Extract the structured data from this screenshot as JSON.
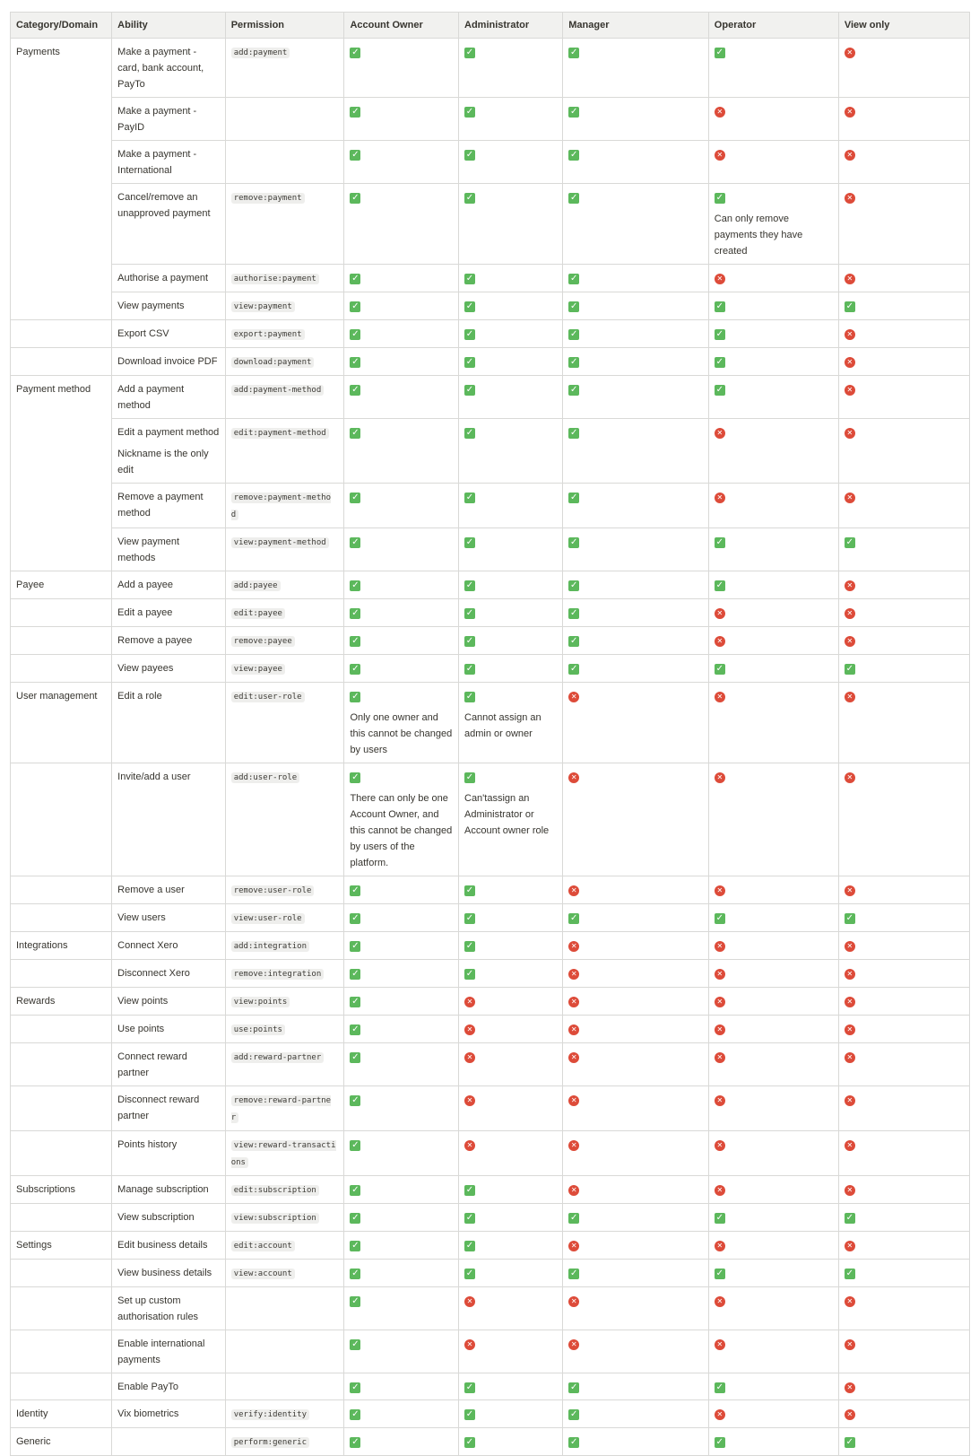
{
  "table": {
    "headers": [
      "Category/Domain",
      "Ability",
      "Permission",
      "Account Owner",
      "Administrator",
      "Manager",
      "Operator",
      "View only"
    ],
    "rows": [
      {
        "category": "Payments",
        "ability": "Make a payment - card, bank account, PayTo",
        "ability_note": "",
        "permission": "add:payment",
        "owner": "yes",
        "owner_note": "",
        "admin": "yes",
        "admin_note": "",
        "manager": "yes",
        "manager_note": "",
        "operator": "yes",
        "operator_note": "",
        "view": "no",
        "view_note": ""
      },
      {
        "category": "",
        "ability": "Make a payment - PayID",
        "ability_note": "",
        "permission": "",
        "owner": "yes",
        "owner_note": "",
        "admin": "yes",
        "admin_note": "",
        "manager": "yes",
        "manager_note": "",
        "operator": "no",
        "operator_note": "",
        "view": "no",
        "view_note": ""
      },
      {
        "category": "",
        "ability": "Make a payment - International",
        "ability_note": "",
        "permission": "",
        "owner": "yes",
        "owner_note": "",
        "admin": "yes",
        "admin_note": "",
        "manager": "yes",
        "manager_note": "",
        "operator": "no",
        "operator_note": "",
        "view": "no",
        "view_note": ""
      },
      {
        "category": "",
        "ability": "Cancel/remove an unapproved payment",
        "ability_note": "",
        "permission": "remove:payment",
        "owner": "yes",
        "owner_note": "",
        "admin": "yes",
        "admin_note": "",
        "manager": "yes",
        "manager_note": "",
        "operator": "yes",
        "operator_note": "Can only remove payments they have created",
        "view": "no",
        "view_note": ""
      },
      {
        "category": "",
        "ability": "Authorise a payment",
        "ability_note": "",
        "permission": "authorise:payment",
        "owner": "yes",
        "owner_note": "",
        "admin": "yes",
        "admin_note": "",
        "manager": "yes",
        "manager_note": "",
        "operator": "no",
        "operator_note": "",
        "view": "no",
        "view_note": ""
      },
      {
        "category": "",
        "ability": "View payments",
        "ability_note": "",
        "permission": "view:payment",
        "owner": "yes",
        "owner_note": "",
        "admin": "yes",
        "admin_note": "",
        "manager": "yes",
        "manager_note": "",
        "operator": "yes",
        "operator_note": "",
        "view": "yes",
        "view_note": ""
      },
      {
        "category": "",
        "ability": "Export CSV",
        "ability_note": "",
        "permission": "export:payment",
        "owner": "yes",
        "owner_note": "",
        "admin": "yes",
        "admin_note": "",
        "manager": "yes",
        "manager_note": "",
        "operator": "yes",
        "operator_note": "",
        "view": "no",
        "view_note": ""
      },
      {
        "category": "",
        "ability": "Download invoice PDF",
        "ability_note": "",
        "permission": "download:payment",
        "owner": "yes",
        "owner_note": "",
        "admin": "yes",
        "admin_note": "",
        "manager": "yes",
        "manager_note": "",
        "operator": "yes",
        "operator_note": "",
        "view": "no",
        "view_note": ""
      },
      {
        "category": "Payment method",
        "ability": "Add a payment method",
        "ability_note": "",
        "permission": "add:payment-method",
        "owner": "yes",
        "owner_note": "",
        "admin": "yes",
        "admin_note": "",
        "manager": "yes",
        "manager_note": "",
        "operator": "yes",
        "operator_note": "",
        "view": "no",
        "view_note": ""
      },
      {
        "category": "",
        "ability": "Edit a payment method",
        "ability_note": "Nickname is the only edit",
        "permission": "edit:payment-method",
        "owner": "yes",
        "owner_note": "",
        "admin": "yes",
        "admin_note": "",
        "manager": "yes",
        "manager_note": "",
        "operator": "no",
        "operator_note": "",
        "view": "no",
        "view_note": ""
      },
      {
        "category": "",
        "ability": "Remove a payment method",
        "ability_note": "",
        "permission": "remove:payment-method",
        "owner": "yes",
        "owner_note": "",
        "admin": "yes",
        "admin_note": "",
        "manager": "yes",
        "manager_note": "",
        "operator": "no",
        "operator_note": "",
        "view": "no",
        "view_note": ""
      },
      {
        "category": "",
        "ability": "View payment methods",
        "ability_note": "",
        "permission": "view:payment-method",
        "owner": "yes",
        "owner_note": "",
        "admin": "yes",
        "admin_note": "",
        "manager": "yes",
        "manager_note": "",
        "operator": "yes",
        "operator_note": "",
        "view": "yes",
        "view_note": ""
      },
      {
        "category": "Payee",
        "ability": "Add a payee",
        "ability_note": "",
        "permission": "add:payee",
        "owner": "yes",
        "owner_note": "",
        "admin": "yes",
        "admin_note": "",
        "manager": "yes",
        "manager_note": "",
        "operator": "yes",
        "operator_note": "",
        "view": "no",
        "view_note": ""
      },
      {
        "category": "",
        "ability": "Edit a payee",
        "ability_note": "",
        "permission": "edit:payee",
        "owner": "yes",
        "owner_note": "",
        "admin": "yes",
        "admin_note": "",
        "manager": "yes",
        "manager_note": "",
        "operator": "no",
        "operator_note": "",
        "view": "no",
        "view_note": ""
      },
      {
        "category": "",
        "ability": "Remove a payee",
        "ability_note": "",
        "permission": "remove:payee",
        "owner": "yes",
        "owner_note": "",
        "admin": "yes",
        "admin_note": "",
        "manager": "yes",
        "manager_note": "",
        "operator": "no",
        "operator_note": "",
        "view": "no",
        "view_note": ""
      },
      {
        "category": "",
        "ability": "View payees",
        "ability_note": "",
        "permission": "view:payee",
        "owner": "yes",
        "owner_note": "",
        "admin": "yes",
        "admin_note": "",
        "manager": "yes",
        "manager_note": "",
        "operator": "yes",
        "operator_note": "",
        "view": "yes",
        "view_note": ""
      },
      {
        "category": "User management",
        "ability": "Edit a role",
        "ability_note": "",
        "permission": "edit:user-role",
        "owner": "yes",
        "owner_note": "Only one owner and this cannot be changed by users",
        "admin": "yes",
        "admin_note": "Cannot assign an admin or owner",
        "manager": "no",
        "manager_note": "",
        "operator": "no",
        "operator_note": "",
        "view": "no",
        "view_note": ""
      },
      {
        "category": "",
        "ability": "Invite/add a user",
        "ability_note": "",
        "permission": "add:user-role",
        "owner": "yes",
        "owner_note": "There can only be one Account Owner, and this cannot be changed by users of the platform.",
        "admin": "yes",
        "admin_note": "Can'tassign an Administrator or Account owner role",
        "manager": "no",
        "manager_note": "",
        "operator": "no",
        "operator_note": "",
        "view": "no",
        "view_note": ""
      },
      {
        "category": "",
        "ability": "Remove a user",
        "ability_note": "",
        "permission": "remove:user-role",
        "owner": "yes",
        "owner_note": "",
        "admin": "yes",
        "admin_note": "",
        "manager": "no",
        "manager_note": "",
        "operator": "no",
        "operator_note": "",
        "view": "no",
        "view_note": ""
      },
      {
        "category": "",
        "ability": "View users",
        "ability_note": "",
        "permission": "view:user-role",
        "owner": "yes",
        "owner_note": "",
        "admin": "yes",
        "admin_note": "",
        "manager": "yes",
        "manager_note": "",
        "operator": "yes",
        "operator_note": "",
        "view": "yes",
        "view_note": ""
      },
      {
        "category": "Integrations",
        "ability": "Connect Xero",
        "ability_note": "",
        "permission": "add:integration",
        "owner": "yes",
        "owner_note": "",
        "admin": "yes",
        "admin_note": "",
        "manager": "no",
        "manager_note": "",
        "operator": "no",
        "operator_note": "",
        "view": "no",
        "view_note": ""
      },
      {
        "category": "",
        "ability": "Disconnect Xero",
        "ability_note": "",
        "permission": "remove:integration",
        "owner": "yes",
        "owner_note": "",
        "admin": "yes",
        "admin_note": "",
        "manager": "no",
        "manager_note": "",
        "operator": "no",
        "operator_note": "",
        "view": "no",
        "view_note": ""
      },
      {
        "category": "Rewards",
        "ability": "View points",
        "ability_note": "",
        "permission": "view:points",
        "owner": "yes",
        "owner_note": "",
        "admin": "no",
        "admin_note": "",
        "manager": "no",
        "manager_note": "",
        "operator": "no",
        "operator_note": "",
        "view": "no",
        "view_note": ""
      },
      {
        "category": "",
        "ability": "Use points",
        "ability_note": "",
        "permission": "use:points",
        "owner": "yes",
        "owner_note": "",
        "admin": "no",
        "admin_note": "",
        "manager": "no",
        "manager_note": "",
        "operator": "no",
        "operator_note": "",
        "view": "no",
        "view_note": ""
      },
      {
        "category": "",
        "ability": "Connect reward partner",
        "ability_note": "",
        "permission": "add:reward-partner",
        "owner": "yes",
        "owner_note": "",
        "admin": "no",
        "admin_note": "",
        "manager": "no",
        "manager_note": "",
        "operator": "no",
        "operator_note": "",
        "view": "no",
        "view_note": ""
      },
      {
        "category": "",
        "ability": "Disconnect reward partner",
        "ability_note": "",
        "permission": "remove:reward-partner",
        "owner": "yes",
        "owner_note": "",
        "admin": "no",
        "admin_note": "",
        "manager": "no",
        "manager_note": "",
        "operator": "no",
        "operator_note": "",
        "view": "no",
        "view_note": ""
      },
      {
        "category": "",
        "ability": "Points history",
        "ability_note": "",
        "permission": "view:reward-transactions",
        "owner": "yes",
        "owner_note": "",
        "admin": "no",
        "admin_note": "",
        "manager": "no",
        "manager_note": "",
        "operator": "no",
        "operator_note": "",
        "view": "no",
        "view_note": ""
      },
      {
        "category": "Subscriptions",
        "ability": "Manage subscription",
        "ability_note": "",
        "permission": "edit:subscription",
        "owner": "yes",
        "owner_note": "",
        "admin": "yes",
        "admin_note": "",
        "manager": "no",
        "manager_note": "",
        "operator": "no",
        "operator_note": "",
        "view": "no",
        "view_note": ""
      },
      {
        "category": "",
        "ability": "View subscription",
        "ability_note": "",
        "permission": "view:subscription",
        "owner": "yes",
        "owner_note": "",
        "admin": "yes",
        "admin_note": "",
        "manager": "yes",
        "manager_note": "",
        "operator": "yes",
        "operator_note": "",
        "view": "yes",
        "view_note": ""
      },
      {
        "category": "Settings",
        "ability": "Edit business details",
        "ability_note": "",
        "permission": "edit:account",
        "owner": "yes",
        "owner_note": "",
        "admin": "yes",
        "admin_note": "",
        "manager": "no",
        "manager_note": "",
        "operator": "no",
        "operator_note": "",
        "view": "no",
        "view_note": ""
      },
      {
        "category": "",
        "ability": "View business details",
        "ability_note": "",
        "permission": "view:account",
        "owner": "yes",
        "owner_note": "",
        "admin": "yes",
        "admin_note": "",
        "manager": "yes",
        "manager_note": "",
        "operator": "yes",
        "operator_note": "",
        "view": "yes",
        "view_note": ""
      },
      {
        "category": "",
        "ability": "Set up custom authorisation rules",
        "ability_note": "",
        "permission": "",
        "owner": "yes",
        "owner_note": "",
        "admin": "no",
        "admin_note": "",
        "manager": "no",
        "manager_note": "",
        "operator": "no",
        "operator_note": "",
        "view": "no",
        "view_note": ""
      },
      {
        "category": "",
        "ability": "Enable international payments",
        "ability_note": "",
        "permission": "",
        "owner": "yes",
        "owner_note": "",
        "admin": "no",
        "admin_note": "",
        "manager": "no",
        "manager_note": "",
        "operator": "no",
        "operator_note": "",
        "view": "no",
        "view_note": ""
      },
      {
        "category": "",
        "ability": "Enable PayTo",
        "ability_note": "",
        "permission": "",
        "owner": "yes",
        "owner_note": "",
        "admin": "yes",
        "admin_note": "",
        "manager": "yes",
        "manager_note": "",
        "operator": "yes",
        "operator_note": "",
        "view": "no",
        "view_note": ""
      },
      {
        "category": "Identity",
        "ability": "Vix biometrics",
        "ability_note": "",
        "permission": "verify:identity",
        "owner": "yes",
        "owner_note": "",
        "admin": "yes",
        "admin_note": "",
        "manager": "yes",
        "manager_note": "",
        "operator": "no",
        "operator_note": "",
        "view": "no",
        "view_note": ""
      },
      {
        "category": "Generic",
        "ability": "",
        "ability_note": "",
        "permission": "perform:generic",
        "owner": "yes",
        "owner_note": "",
        "admin": "yes",
        "admin_note": "",
        "manager": "yes",
        "manager_note": "",
        "operator": "yes",
        "operator_note": "",
        "view": "yes",
        "view_note": ""
      }
    ]
  },
  "icons": {
    "yes": "check-mark-icon",
    "no": "cross-mark-icon"
  },
  "colors": {
    "yes": "#5cb85c",
    "no": "#dd4b39",
    "header_bg": "#f1f1ef",
    "border": "#d9d9d7"
  }
}
